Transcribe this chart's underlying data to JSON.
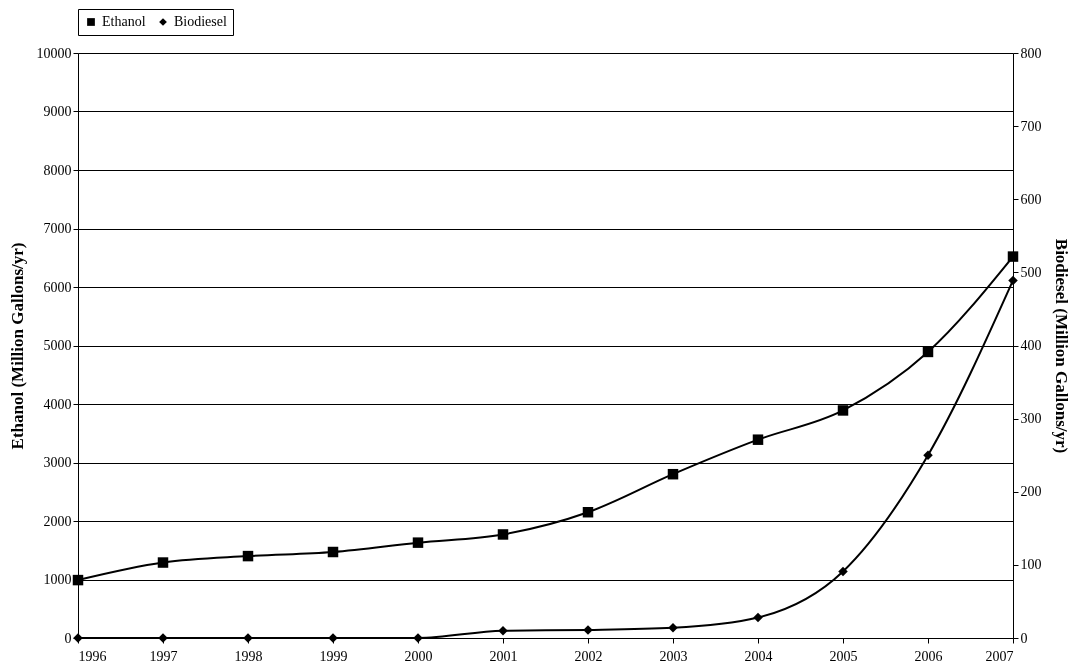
{
  "chart_data": {
    "type": "line",
    "ylabel": "Ethanol (Million Gallons/yr)",
    "y2label": "Biodiesel (Million Gallons/yr)",
    "x": [
      1996,
      1997,
      1998,
      1999,
      2000,
      2001,
      2002,
      2003,
      2004,
      2005,
      2006,
      2007
    ],
    "xlim": [
      1996,
      2007
    ],
    "xticks": [
      1996,
      1997,
      1998,
      1999,
      2000,
      2001,
      2002,
      2003,
      2004,
      2005,
      2006,
      2007
    ],
    "ylim": [
      0,
      10000
    ],
    "yticks": [
      0,
      1000,
      2000,
      3000,
      4000,
      5000,
      6000,
      7000,
      8000,
      9000,
      10000
    ],
    "y2lim": [
      0,
      800
    ],
    "y2ticks": [
      0,
      100,
      200,
      300,
      400,
      500,
      600,
      700,
      800
    ],
    "series": [
      {
        "name": "Ethanol",
        "color": "#000000",
        "marker": "square",
        "values": [
          990,
          1290,
          1400,
          1470,
          1630,
          1770,
          2150,
          2800,
          3390,
          3890,
          4890,
          6520
        ]
      },
      {
        "name": "Biodiesel",
        "color": "#000000",
        "marker": "diamond",
        "axis": "y2",
        "values": [
          0,
          0,
          0,
          0,
          0,
          10,
          11,
          14,
          28,
          91,
          250,
          489
        ]
      }
    ],
    "grid": "y",
    "legend": "top",
    "line_style": "solid"
  }
}
